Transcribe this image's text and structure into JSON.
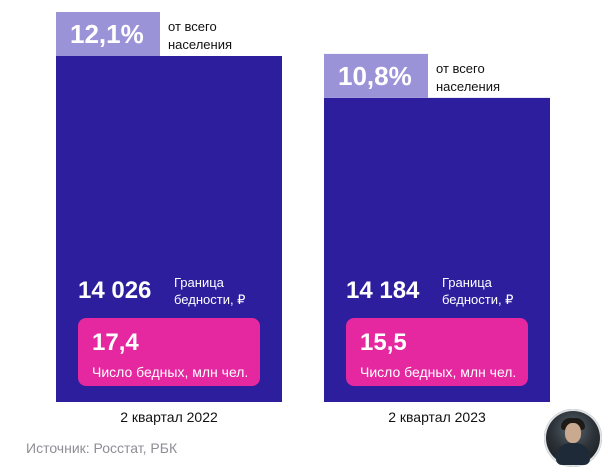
{
  "chart_data": {
    "type": "bar",
    "categories": [
      "2 квартал 2022",
      "2 квартал 2023"
    ],
    "share_of_population": {
      "values": [
        12.1,
        10.8
      ],
      "labels": [
        "12,1%",
        "10,8%"
      ],
      "suffix": "от всего населения"
    },
    "poverty_line": {
      "values": [
        14026,
        14184
      ],
      "labels": [
        "14 026",
        "14 184"
      ],
      "caption": "Граница бедности, ₽"
    },
    "poor_count": {
      "values": [
        17.4,
        15.5
      ],
      "labels": [
        "17,4",
        "15,5"
      ],
      "caption": "Число бедных, млн чел."
    },
    "bar_value_series": "share_of_population",
    "ylim": [
      0,
      12.1
    ],
    "colors": {
      "bar": "#2d1e9e",
      "tab": "#9b93d8",
      "pink": "#e5289f",
      "text": "#000000"
    },
    "source": "Источник: Росстат, РБК"
  },
  "footer": {
    "avatar_icon": "avatar-icon"
  }
}
